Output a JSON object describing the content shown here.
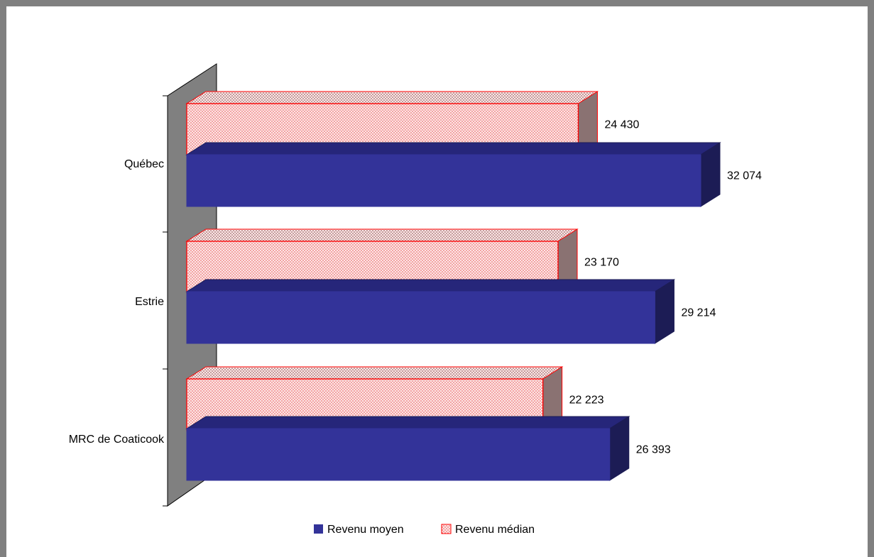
{
  "chart_data": {
    "type": "bar",
    "orientation": "horizontal",
    "three_d": true,
    "categories": [
      "MRC de Coaticook",
      "Estrie",
      "Québec"
    ],
    "series": [
      {
        "name": "Revenu moyen",
        "values": [
          26393,
          29214,
          32074
        ],
        "labels": [
          "26 393",
          "29 214",
          "32 074"
        ]
      },
      {
        "name": "Revenu médian",
        "values": [
          22223,
          23170,
          24430
        ],
        "labels": [
          "22 223",
          "23 170",
          "24 430"
        ]
      }
    ],
    "xlim": [
      0,
      33500
    ],
    "grid": false,
    "legend": "bottom-center"
  },
  "colors": {
    "moyen_front": "#333399",
    "moyen_top": "#26267a",
    "moyen_side": "#1c1c55",
    "median_fill": "#fce6e6",
    "median_dot": "#e84848",
    "median_stroke": "#ff0000",
    "median_top_dot": "#804848",
    "median_side": "#8a7272",
    "wall": "#808080",
    "frame": "#808080"
  }
}
